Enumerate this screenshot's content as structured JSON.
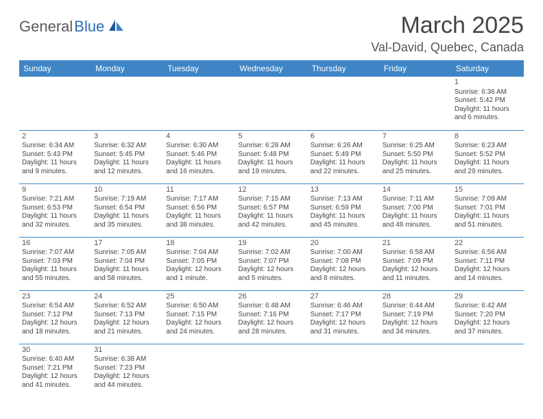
{
  "brand": {
    "part1": "General",
    "part2": "Blue"
  },
  "title": "March 2025",
  "location": "Val-David, Quebec, Canada",
  "colors": {
    "header_bg": "#3f85c6",
    "header_text": "#ffffff",
    "brand_gray": "#5a5a5a",
    "brand_blue": "#2a6db8",
    "cell_border": "#3f85c6",
    "text": "#444444",
    "background": "#ffffff"
  },
  "day_headers": [
    "Sunday",
    "Monday",
    "Tuesday",
    "Wednesday",
    "Thursday",
    "Friday",
    "Saturday"
  ],
  "weeks": [
    [
      null,
      null,
      null,
      null,
      null,
      null,
      {
        "n": "1",
        "sr": "Sunrise: 6:36 AM",
        "ss": "Sunset: 5:42 PM",
        "d1": "Daylight: 11 hours",
        "d2": "and 6 minutes."
      }
    ],
    [
      {
        "n": "2",
        "sr": "Sunrise: 6:34 AM",
        "ss": "Sunset: 5:43 PM",
        "d1": "Daylight: 11 hours",
        "d2": "and 9 minutes."
      },
      {
        "n": "3",
        "sr": "Sunrise: 6:32 AM",
        "ss": "Sunset: 5:45 PM",
        "d1": "Daylight: 11 hours",
        "d2": "and 12 minutes."
      },
      {
        "n": "4",
        "sr": "Sunrise: 6:30 AM",
        "ss": "Sunset: 5:46 PM",
        "d1": "Daylight: 11 hours",
        "d2": "and 16 minutes."
      },
      {
        "n": "5",
        "sr": "Sunrise: 6:28 AM",
        "ss": "Sunset: 5:48 PM",
        "d1": "Daylight: 11 hours",
        "d2": "and 19 minutes."
      },
      {
        "n": "6",
        "sr": "Sunrise: 6:26 AM",
        "ss": "Sunset: 5:49 PM",
        "d1": "Daylight: 11 hours",
        "d2": "and 22 minutes."
      },
      {
        "n": "7",
        "sr": "Sunrise: 6:25 AM",
        "ss": "Sunset: 5:50 PM",
        "d1": "Daylight: 11 hours",
        "d2": "and 25 minutes."
      },
      {
        "n": "8",
        "sr": "Sunrise: 6:23 AM",
        "ss": "Sunset: 5:52 PM",
        "d1": "Daylight: 11 hours",
        "d2": "and 29 minutes."
      }
    ],
    [
      {
        "n": "9",
        "sr": "Sunrise: 7:21 AM",
        "ss": "Sunset: 6:53 PM",
        "d1": "Daylight: 11 hours",
        "d2": "and 32 minutes."
      },
      {
        "n": "10",
        "sr": "Sunrise: 7:19 AM",
        "ss": "Sunset: 6:54 PM",
        "d1": "Daylight: 11 hours",
        "d2": "and 35 minutes."
      },
      {
        "n": "11",
        "sr": "Sunrise: 7:17 AM",
        "ss": "Sunset: 6:56 PM",
        "d1": "Daylight: 11 hours",
        "d2": "and 38 minutes."
      },
      {
        "n": "12",
        "sr": "Sunrise: 7:15 AM",
        "ss": "Sunset: 6:57 PM",
        "d1": "Daylight: 11 hours",
        "d2": "and 42 minutes."
      },
      {
        "n": "13",
        "sr": "Sunrise: 7:13 AM",
        "ss": "Sunset: 6:59 PM",
        "d1": "Daylight: 11 hours",
        "d2": "and 45 minutes."
      },
      {
        "n": "14",
        "sr": "Sunrise: 7:11 AM",
        "ss": "Sunset: 7:00 PM",
        "d1": "Daylight: 11 hours",
        "d2": "and 48 minutes."
      },
      {
        "n": "15",
        "sr": "Sunrise: 7:09 AM",
        "ss": "Sunset: 7:01 PM",
        "d1": "Daylight: 11 hours",
        "d2": "and 51 minutes."
      }
    ],
    [
      {
        "n": "16",
        "sr": "Sunrise: 7:07 AM",
        "ss": "Sunset: 7:03 PM",
        "d1": "Daylight: 11 hours",
        "d2": "and 55 minutes."
      },
      {
        "n": "17",
        "sr": "Sunrise: 7:05 AM",
        "ss": "Sunset: 7:04 PM",
        "d1": "Daylight: 11 hours",
        "d2": "and 58 minutes."
      },
      {
        "n": "18",
        "sr": "Sunrise: 7:04 AM",
        "ss": "Sunset: 7:05 PM",
        "d1": "Daylight: 12 hours",
        "d2": "and 1 minute."
      },
      {
        "n": "19",
        "sr": "Sunrise: 7:02 AM",
        "ss": "Sunset: 7:07 PM",
        "d1": "Daylight: 12 hours",
        "d2": "and 5 minutes."
      },
      {
        "n": "20",
        "sr": "Sunrise: 7:00 AM",
        "ss": "Sunset: 7:08 PM",
        "d1": "Daylight: 12 hours",
        "d2": "and 8 minutes."
      },
      {
        "n": "21",
        "sr": "Sunrise: 6:58 AM",
        "ss": "Sunset: 7:09 PM",
        "d1": "Daylight: 12 hours",
        "d2": "and 11 minutes."
      },
      {
        "n": "22",
        "sr": "Sunrise: 6:56 AM",
        "ss": "Sunset: 7:11 PM",
        "d1": "Daylight: 12 hours",
        "d2": "and 14 minutes."
      }
    ],
    [
      {
        "n": "23",
        "sr": "Sunrise: 6:54 AM",
        "ss": "Sunset: 7:12 PM",
        "d1": "Daylight: 12 hours",
        "d2": "and 18 minutes."
      },
      {
        "n": "24",
        "sr": "Sunrise: 6:52 AM",
        "ss": "Sunset: 7:13 PM",
        "d1": "Daylight: 12 hours",
        "d2": "and 21 minutes."
      },
      {
        "n": "25",
        "sr": "Sunrise: 6:50 AM",
        "ss": "Sunset: 7:15 PM",
        "d1": "Daylight: 12 hours",
        "d2": "and 24 minutes."
      },
      {
        "n": "26",
        "sr": "Sunrise: 6:48 AM",
        "ss": "Sunset: 7:16 PM",
        "d1": "Daylight: 12 hours",
        "d2": "and 28 minutes."
      },
      {
        "n": "27",
        "sr": "Sunrise: 6:46 AM",
        "ss": "Sunset: 7:17 PM",
        "d1": "Daylight: 12 hours",
        "d2": "and 31 minutes."
      },
      {
        "n": "28",
        "sr": "Sunrise: 6:44 AM",
        "ss": "Sunset: 7:19 PM",
        "d1": "Daylight: 12 hours",
        "d2": "and 34 minutes."
      },
      {
        "n": "29",
        "sr": "Sunrise: 6:42 AM",
        "ss": "Sunset: 7:20 PM",
        "d1": "Daylight: 12 hours",
        "d2": "and 37 minutes."
      }
    ],
    [
      {
        "n": "30",
        "sr": "Sunrise: 6:40 AM",
        "ss": "Sunset: 7:21 PM",
        "d1": "Daylight: 12 hours",
        "d2": "and 41 minutes."
      },
      {
        "n": "31",
        "sr": "Sunrise: 6:38 AM",
        "ss": "Sunset: 7:23 PM",
        "d1": "Daylight: 12 hours",
        "d2": "and 44 minutes."
      },
      null,
      null,
      null,
      null,
      null
    ]
  ]
}
